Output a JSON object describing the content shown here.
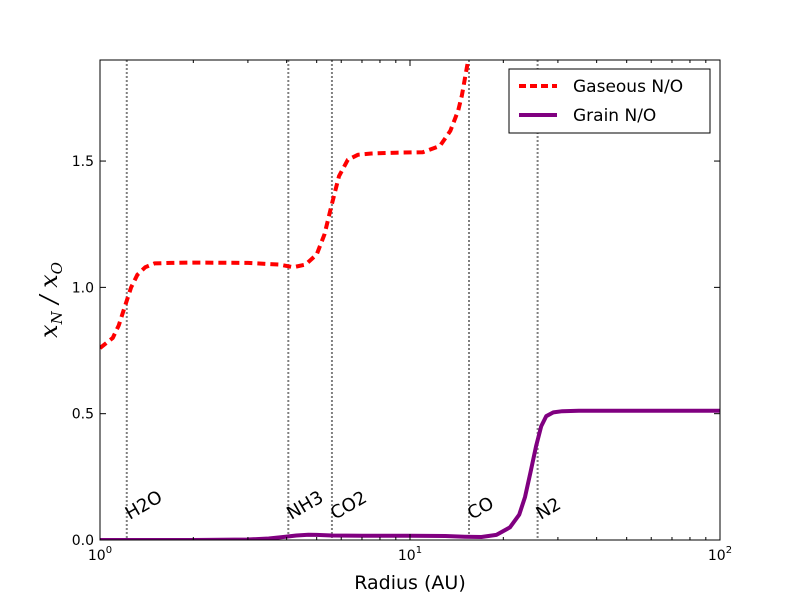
{
  "chart_data": {
    "type": "line",
    "xscale": "log",
    "xlim": [
      1,
      100
    ],
    "ylim": [
      0,
      1.9
    ],
    "xlabel": "Radius (AU)",
    "ylabel": {
      "main": "x",
      "sub_num": "N",
      "slash": " / ",
      "main2": "x",
      "sub_den": "O"
    },
    "yticks": [
      {
        "value": 0.0,
        "label": "0.0"
      },
      {
        "value": 0.5,
        "label": "0.5"
      },
      {
        "value": 1.0,
        "label": "1.0"
      },
      {
        "value": 1.5,
        "label": "1.5"
      }
    ],
    "xticks": [
      {
        "value": 1,
        "base": "10",
        "exp": "0"
      },
      {
        "value": 10,
        "base": "10",
        "exp": "1"
      },
      {
        "value": 100,
        "base": "10",
        "exp": "2"
      }
    ],
    "snowlines": [
      {
        "name": "H2O",
        "x": 1.22
      },
      {
        "name": "NH3",
        "x": 4.05
      },
      {
        "name": "CO2",
        "x": 5.6
      },
      {
        "name": "CO",
        "x": 15.5
      },
      {
        "name": "N2",
        "x": 25.8
      }
    ],
    "series": [
      {
        "name": "Gaseous N/O",
        "color": "#ff0000",
        "style": "dashed",
        "x": [
          1.0,
          1.1,
          1.15,
          1.2,
          1.26,
          1.32,
          1.4,
          1.5,
          1.7,
          2.0,
          3.0,
          3.8,
          4.2,
          4.6,
          5.0,
          5.3,
          5.6,
          5.9,
          6.3,
          6.8,
          7.5,
          9.0,
          11.0,
          12.5,
          13.5,
          14.3,
          14.7,
          15.0,
          15.3,
          15.6
        ],
        "y": [
          0.76,
          0.8,
          0.85,
          0.92,
          1.0,
          1.05,
          1.08,
          1.095,
          1.097,
          1.098,
          1.097,
          1.09,
          1.08,
          1.09,
          1.13,
          1.21,
          1.33,
          1.44,
          1.505,
          1.525,
          1.53,
          1.533,
          1.535,
          1.56,
          1.62,
          1.7,
          1.76,
          1.82,
          1.88,
          1.95
        ]
      },
      {
        "name": "Grain N/O",
        "color": "#800080",
        "style": "solid",
        "x": [
          1.0,
          2.0,
          3.0,
          3.5,
          3.9,
          4.3,
          4.7,
          5.0,
          5.6,
          7.0,
          10.0,
          13.0,
          15.0,
          17.0,
          19.0,
          21.0,
          22.5,
          23.5,
          24.5,
          25.5,
          26.5,
          27.5,
          29.0,
          31.0,
          35.0,
          50.0,
          100.0
        ],
        "y": [
          0.0,
          0.0,
          0.002,
          0.006,
          0.012,
          0.018,
          0.021,
          0.02,
          0.018,
          0.017,
          0.017,
          0.016,
          0.013,
          0.012,
          0.02,
          0.05,
          0.1,
          0.17,
          0.27,
          0.37,
          0.45,
          0.49,
          0.505,
          0.51,
          0.512,
          0.512,
          0.512
        ]
      }
    ],
    "legend": {
      "position": "top-right",
      "entries": [
        "Gaseous N/O",
        "Grain N/O"
      ]
    }
  }
}
